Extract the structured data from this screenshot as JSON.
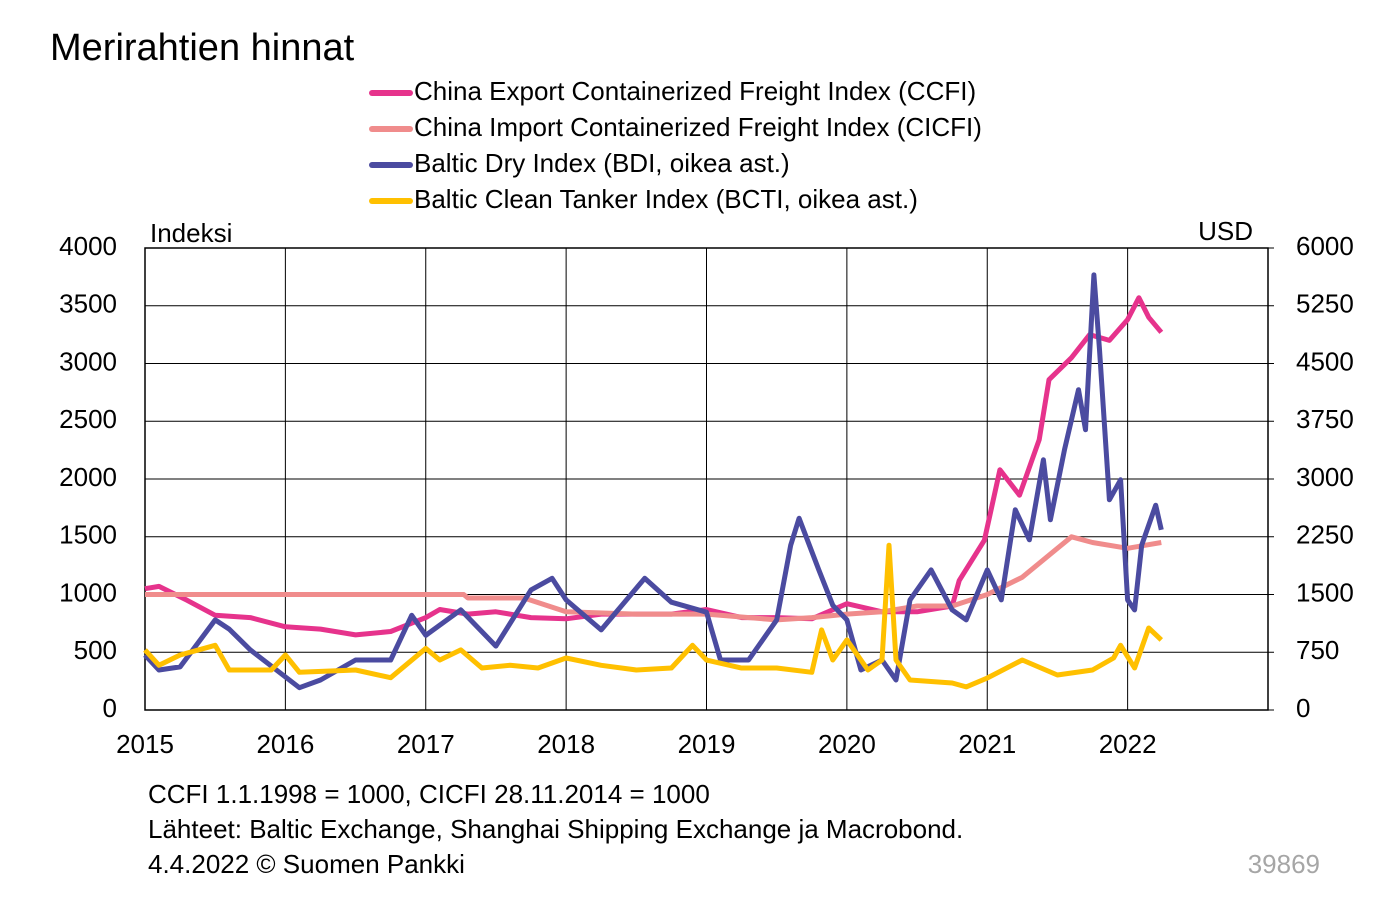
{
  "chart_data": {
    "type": "line",
    "title": "Merirahtien hinnat",
    "y_label": "Indeksi",
    "y2_label": "USD",
    "notes": [
      "CCFI 1.1.1998 = 1000, CICFI 28.11.2014 = 1000",
      "Lähteet: Baltic Exchange, Shanghai Shipping Exchange ja Macrobond.",
      "4.4.2022 © Suomen Pankki"
    ],
    "code": "39869",
    "xlim": [
      2015,
      2023
    ],
    "xticks": [
      2015,
      2016,
      2017,
      2018,
      2019,
      2020,
      2021,
      2022
    ],
    "ylim": [
      0,
      4000
    ],
    "yticks": [
      0,
      500,
      1000,
      1500,
      2000,
      2500,
      3000,
      3500,
      4000
    ],
    "y2lim": [
      0,
      6000
    ],
    "y2ticks": [
      0,
      750,
      1500,
      2250,
      3000,
      3750,
      4500,
      5250,
      6000
    ],
    "grid": true,
    "series": [
      {
        "name": "China Export Containerized Freight Index (CCFI)",
        "color": "#e6338c",
        "x": [
          2015,
          2015.1,
          2015.3,
          2015.5,
          2015.75,
          2016,
          2016.25,
          2016.5,
          2016.75,
          2017,
          2017.1,
          2017.3,
          2017.5,
          2017.75,
          2018,
          2018.25,
          2018.5,
          2018.75,
          2019,
          2019.25,
          2019.5,
          2019.75,
          2020,
          2020.25,
          2020.5,
          2020.75,
          2020.8,
          2020.98,
          2021.09,
          2021.23,
          2021.37,
          2021.44,
          2021.6,
          2021.73,
          2021.87,
          2022,
          2022.08,
          2022.15,
          2022.24
        ],
        "values": [
          1050,
          1070,
          950,
          820,
          800,
          720,
          700,
          650,
          680,
          800,
          870,
          830,
          850,
          800,
          790,
          830,
          830,
          830,
          870,
          800,
          800,
          790,
          920,
          850,
          850,
          900,
          1120,
          1470,
          2080,
          1860,
          2340,
          2860,
          3050,
          3250,
          3200,
          3380,
          3570,
          3400,
          3270
        ]
      },
      {
        "name": "China Import Containerized Freight Index (CICFI)",
        "color": "#f08c8c",
        "x": [
          2015,
          2016,
          2017,
          2017.27,
          2017.3,
          2017.7,
          2018,
          2018.5,
          2019,
          2019.5,
          2019.75,
          2020,
          2020.25,
          2020.5,
          2020.75,
          2021,
          2021.25,
          2021.5,
          2021.6,
          2021.75,
          2022,
          2022.24
        ],
        "values": [
          1000,
          1000,
          1000,
          1000,
          970,
          970,
          850,
          830,
          830,
          780,
          800,
          830,
          850,
          900,
          900,
          1000,
          1150,
          1400,
          1500,
          1450,
          1400,
          1450
        ]
      },
      {
        "name": "Baltic Dry Index (BDI, oikea ast.)",
        "color": "#4b4ba0",
        "axis": "y2",
        "x": [
          2015,
          2015.1,
          2015.25,
          2015.5,
          2015.6,
          2015.75,
          2016.1,
          2016.25,
          2016.5,
          2016.75,
          2016.9,
          2017,
          2017.25,
          2017.5,
          2017.75,
          2017.9,
          2018,
          2018.25,
          2018.56,
          2018.75,
          2019,
          2019.1,
          2019.3,
          2019.5,
          2019.6,
          2019.66,
          2019.8,
          2019.9,
          2020,
          2020.1,
          2020.25,
          2020.35,
          2020.45,
          2020.6,
          2020.75,
          2020.85,
          2021,
          2021.1,
          2021.2,
          2021.3,
          2021.4,
          2021.45,
          2021.55,
          2021.65,
          2021.7,
          2021.76,
          2021.8,
          2021.87,
          2021.95,
          2022,
          2022.05,
          2022.1,
          2022.2,
          2022.24
        ],
        "values": [
          714,
          520,
          560,
          1170,
          1050,
          780,
          290,
          390,
          650,
          650,
          1230,
          970,
          1300,
          830,
          1560,
          1710,
          1430,
          1040,
          1710,
          1400,
          1270,
          650,
          650,
          1170,
          2140,
          2490,
          1820,
          1360,
          1170,
          520,
          650,
          390,
          1430,
          1820,
          1300,
          1170,
          1820,
          1430,
          2600,
          2210,
          3250,
          2470,
          3380,
          4160,
          3640,
          5650,
          4680,
          2730,
          2990,
          1430,
          1300,
          2140,
          2660,
          2340
        ]
      },
      {
        "name": "Baltic Clean Tanker Index (BCTI, oikea ast.)",
        "color": "#ffc000",
        "axis": "y2",
        "x": [
          2015,
          2015.1,
          2015.25,
          2015.5,
          2015.6,
          2015.9,
          2016,
          2016.1,
          2016.5,
          2016.75,
          2017,
          2017.1,
          2017.25,
          2017.4,
          2017.6,
          2017.8,
          2018,
          2018.25,
          2018.5,
          2018.75,
          2018.9,
          2019,
          2019.25,
          2019.5,
          2019.75,
          2019.82,
          2019.9,
          2020,
          2020.15,
          2020.25,
          2020.3,
          2020.35,
          2020.45,
          2020.75,
          2020.85,
          2021,
          2021.25,
          2021.5,
          2021.75,
          2021.9,
          2021.95,
          2022.05,
          2022.15,
          2022.24
        ],
        "values": [
          780,
          580,
          714,
          840,
          520,
          520,
          714,
          490,
          520,
          420,
          800,
          650,
          780,
          545,
          580,
          545,
          675,
          580,
          520,
          545,
          840,
          650,
          545,
          545,
          490,
          1040,
          650,
          910,
          520,
          650,
          2140,
          650,
          390,
          350,
          300,
          415,
          650,
          455,
          520,
          675,
          840,
          545,
          1065,
          910
        ]
      }
    ]
  }
}
